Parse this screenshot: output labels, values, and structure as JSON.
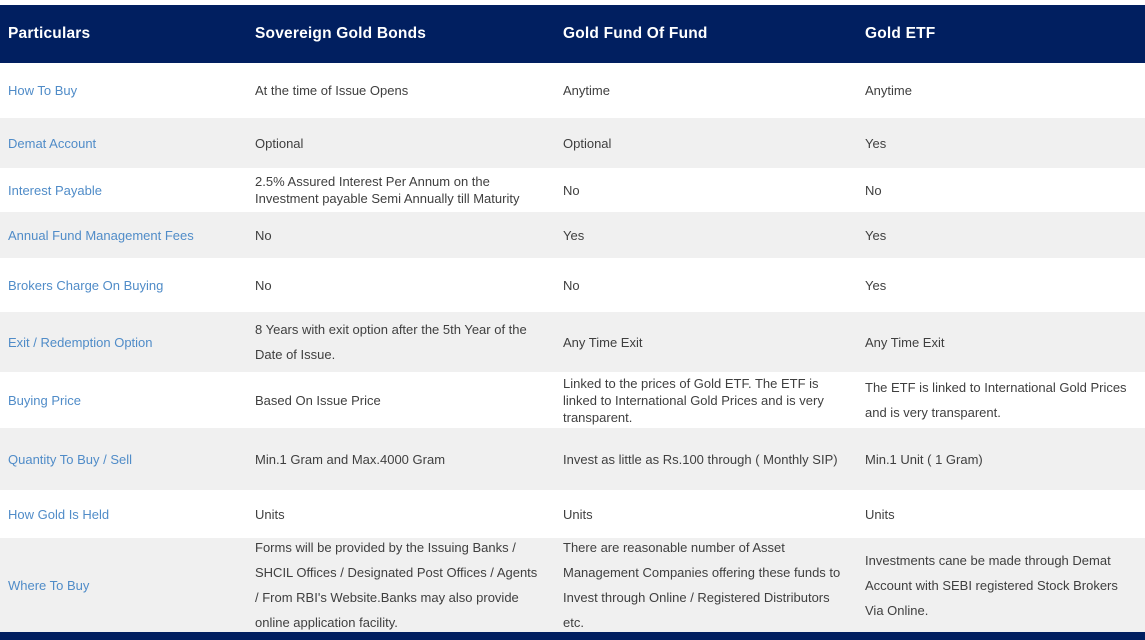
{
  "colors": {
    "header_bg": "#011F60",
    "footer_bg": "#011F60",
    "label_text": "#508CC8",
    "cell_text": "#3F3F3F",
    "alt_row_bg": "#F0F0F0"
  },
  "table": {
    "header": [
      "Particulars",
      "Sovereign Gold Bonds",
      "Gold Fund Of Fund",
      "Gold ETF"
    ],
    "column_keys": [
      "sgb",
      "fof",
      "etf"
    ],
    "rows": [
      {
        "label": "How To Buy",
        "cells": [
          {
            "text": "At the time of Issue Opens",
            "loose": false
          },
          {
            "text": "Anytime",
            "loose": false
          },
          {
            "text": "Anytime",
            "loose": false
          }
        ]
      },
      {
        "label": "Demat Account",
        "cells": [
          {
            "text": "Optional",
            "loose": false
          },
          {
            "text": "Optional",
            "loose": false
          },
          {
            "text": "Yes",
            "loose": false
          }
        ]
      },
      {
        "label": "Interest Payable",
        "cells": [
          {
            "text": "2.5% Assured Interest Per Annum on the Investment payable Semi Annually till Maturity",
            "loose": false
          },
          {
            "text": "No",
            "loose": false
          },
          {
            "text": "No",
            "loose": false
          }
        ]
      },
      {
        "label": "Annual Fund Management Fees",
        "cells": [
          {
            "text": "No",
            "loose": false
          },
          {
            "text": "Yes",
            "loose": false
          },
          {
            "text": "Yes",
            "loose": false
          }
        ]
      },
      {
        "label": "Brokers Charge On Buying",
        "cells": [
          {
            "text": "No",
            "loose": false
          },
          {
            "text": "No",
            "loose": false
          },
          {
            "text": "Yes",
            "loose": false
          }
        ]
      },
      {
        "label": "Exit / Redemption Option",
        "cells": [
          {
            "text": "8 Years with exit option after the 5th Year of the Date of Issue.",
            "loose": true
          },
          {
            "text": "Any Time Exit",
            "loose": false
          },
          {
            "text": "Any Time Exit",
            "loose": false
          }
        ]
      },
      {
        "label": "Buying Price",
        "cells": [
          {
            "text": "Based On Issue Price",
            "loose": false
          },
          {
            "text": "Linked to the prices of Gold ETF. The ETF is linked to International Gold Prices and is very transparent.",
            "loose": false
          },
          {
            "text": "The ETF is linked to International Gold Prices and is very transparent.",
            "loose": true
          }
        ]
      },
      {
        "label": "Quantity To Buy / Sell",
        "cells": [
          {
            "text": "Min.1 Gram and Max.4000 Gram",
            "loose": false
          },
          {
            "text": "Invest as little as Rs.100 through ( Monthly SIP)",
            "loose": true
          },
          {
            "text": "Min.1 Unit ( 1 Gram)",
            "loose": false
          }
        ]
      },
      {
        "label": "How Gold Is Held",
        "cells": [
          {
            "text": "Units",
            "loose": false
          },
          {
            "text": "Units",
            "loose": false
          },
          {
            "text": "Units",
            "loose": false
          }
        ]
      },
      {
        "label": "Where To Buy",
        "cells": [
          {
            "text": "Forms will be provided by the Issuing Banks / SHCIL Offices / Designated Post Offices / Agents / From RBI's Website.Banks may also provide online application facility.",
            "loose": true
          },
          {
            "text": "There are reasonable number of Asset Management Companies offering these funds to Invest through Online / Registered Distributors etc.",
            "loose": true
          },
          {
            "text": "Investments cane be made through Demat Account with SEBI registered Stock Brokers Via Online.",
            "loose": true
          }
        ]
      }
    ]
  }
}
